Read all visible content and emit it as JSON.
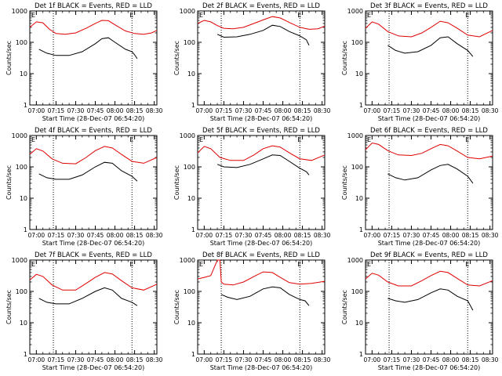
{
  "figure": {
    "x_tick_labels": [
      "07:00",
      "07:15",
      "07:30",
      "07:45",
      "08:00",
      "08:15",
      "08:30"
    ],
    "x_axis_title": "Start Time (28-Dec-07 06:54:20)",
    "y_axis_title": "Counts/sec",
    "y_tick_labels": [
      "1",
      "10",
      "100",
      "1000"
    ],
    "marker_label": "E",
    "colors": {
      "events": "#000000",
      "lld": "#e00000",
      "axes": "#000000"
    }
  },
  "chart_data": [
    {
      "type": "line",
      "title": "Det 1f BLACK = Events, RED = LLD",
      "xlabel": "Start Time (28-Dec-07 06:54:20)",
      "ylabel": "Counts/sec",
      "yscale": "log",
      "ylim": [
        1,
        1000
      ],
      "xlim": [
        "06:55",
        "08:32"
      ],
      "vlines": [
        "07:13",
        "08:13"
      ],
      "series": [
        {
          "name": "Events",
          "x": [
            "07:02",
            "07:08",
            "07:15",
            "07:25",
            "07:35",
            "07:45",
            "07:50",
            "07:55",
            "08:00",
            "08:08",
            "08:13",
            "08:15",
            "08:17"
          ],
          "values": [
            60,
            45,
            38,
            38,
            50,
            90,
            130,
            140,
            100,
            60,
            50,
            40,
            30
          ]
        },
        {
          "name": "LLD",
          "x": [
            "06:55",
            "07:00",
            "07:05",
            "07:10",
            "07:15",
            "07:22",
            "07:30",
            "07:38",
            "07:45",
            "07:50",
            "07:55",
            "08:00",
            "08:08",
            "08:15",
            "08:22",
            "08:28",
            "08:32"
          ],
          "values": [
            300,
            450,
            420,
            260,
            190,
            180,
            200,
            280,
            400,
            500,
            490,
            360,
            230,
            190,
            180,
            200,
            240
          ]
        }
      ]
    },
    {
      "type": "line",
      "title": "Det 2f BLACK = Events, RED = LLD",
      "xlabel": "Start Time (28-Dec-07 06:54:20)",
      "ylabel": "Counts/sec",
      "yscale": "log",
      "ylim": [
        1,
        1000
      ],
      "xlim": [
        "06:55",
        "08:32"
      ],
      "vlines": [
        "07:13",
        "08:13"
      ],
      "series": [
        {
          "name": "Events",
          "x": [
            "07:10",
            "07:15",
            "07:25",
            "07:35",
            "07:45",
            "07:52",
            "07:58",
            "08:05",
            "08:13",
            "08:18",
            "08:20"
          ],
          "values": [
            180,
            145,
            150,
            180,
            240,
            350,
            320,
            220,
            160,
            120,
            80
          ]
        },
        {
          "name": "LLD",
          "x": [
            "06:55",
            "07:00",
            "07:05",
            "07:10",
            "07:15",
            "07:22",
            "07:30",
            "07:38",
            "07:45",
            "07:52",
            "07:58",
            "08:05",
            "08:13",
            "08:20",
            "08:27",
            "08:32"
          ],
          "values": [
            400,
            500,
            450,
            340,
            280,
            270,
            300,
            400,
            520,
            660,
            600,
            430,
            300,
            260,
            270,
            330
          ]
        }
      ]
    },
    {
      "type": "line",
      "title": "Det 3f BLACK = Events, RED = LLD",
      "xlabel": "Start Time (28-Dec-07 06:54:20)",
      "ylabel": "Counts/sec",
      "yscale": "log",
      "ylim": [
        1,
        1000
      ],
      "xlim": [
        "06:55",
        "08:32"
      ],
      "vlines": [
        "07:13",
        "08:13"
      ],
      "series": [
        {
          "name": "Events",
          "x": [
            "07:12",
            "07:18",
            "07:25",
            "07:35",
            "07:45",
            "07:52",
            "07:58",
            "08:05",
            "08:13",
            "08:17"
          ],
          "values": [
            80,
            55,
            45,
            50,
            80,
            140,
            150,
            90,
            55,
            35
          ]
        },
        {
          "name": "LLD",
          "x": [
            "06:55",
            "07:00",
            "07:05",
            "07:12",
            "07:20",
            "07:30",
            "07:38",
            "07:45",
            "07:52",
            "07:58",
            "08:05",
            "08:13",
            "08:22",
            "08:32"
          ],
          "values": [
            280,
            450,
            380,
            220,
            160,
            150,
            200,
            300,
            470,
            420,
            280,
            170,
            150,
            240
          ]
        }
      ]
    },
    {
      "type": "line",
      "title": "Det 4f BLACK = Events, RED = LLD",
      "xlabel": "Start Time (28-Dec-07 06:54:20)",
      "ylabel": "Counts/sec",
      "yscale": "log",
      "ylim": [
        1,
        1000
      ],
      "xlim": [
        "06:55",
        "08:32"
      ],
      "vlines": [
        "07:13",
        "08:13"
      ],
      "series": [
        {
          "name": "Events",
          "x": [
            "07:02",
            "07:08",
            "07:15",
            "07:25",
            "07:35",
            "07:45",
            "07:52",
            "07:58",
            "08:05",
            "08:13",
            "08:17"
          ],
          "values": [
            60,
            45,
            40,
            40,
            55,
            100,
            140,
            130,
            75,
            50,
            35
          ]
        },
        {
          "name": "LLD",
          "x": [
            "06:55",
            "07:00",
            "07:05",
            "07:12",
            "07:20",
            "07:30",
            "07:38",
            "07:45",
            "07:52",
            "07:58",
            "08:05",
            "08:13",
            "08:22",
            "08:32"
          ],
          "values": [
            250,
            380,
            320,
            180,
            130,
            125,
            200,
            330,
            450,
            400,
            250,
            150,
            130,
            200
          ]
        }
      ]
    },
    {
      "type": "line",
      "title": "Det 5f BLACK = Events, RED = LLD",
      "xlabel": "Start Time (28-Dec-07 06:54:20)",
      "ylabel": "Counts/sec",
      "yscale": "log",
      "ylim": [
        1,
        1000
      ],
      "xlim": [
        "06:55",
        "08:32"
      ],
      "vlines": [
        "07:13",
        "08:13"
      ],
      "series": [
        {
          "name": "Events",
          "x": [
            "07:10",
            "07:15",
            "07:25",
            "07:35",
            "07:45",
            "07:52",
            "07:58",
            "08:05",
            "08:13",
            "08:18",
            "08:20"
          ],
          "values": [
            120,
            100,
            95,
            120,
            180,
            240,
            230,
            150,
            90,
            70,
            55
          ]
        },
        {
          "name": "LLD",
          "x": [
            "06:55",
            "07:00",
            "07:05",
            "07:12",
            "07:20",
            "07:30",
            "07:38",
            "07:45",
            "07:52",
            "07:58",
            "08:05",
            "08:13",
            "08:22",
            "08:32"
          ],
          "values": [
            280,
            450,
            380,
            200,
            160,
            160,
            240,
            380,
            470,
            430,
            280,
            180,
            160,
            240
          ]
        }
      ]
    },
    {
      "type": "line",
      "title": "Det 6f BLACK = Events, RED = LLD",
      "xlabel": "Start Time (28-Dec-07 06:54:20)",
      "ylabel": "Counts/sec",
      "yscale": "log",
      "ylim": [
        1,
        1000
      ],
      "xlim": [
        "06:55",
        "08:32"
      ],
      "vlines": [
        "07:13",
        "08:13"
      ],
      "series": [
        {
          "name": "Events",
          "x": [
            "07:12",
            "07:18",
            "07:25",
            "07:35",
            "07:45",
            "07:52",
            "07:58",
            "08:05",
            "08:13",
            "08:17"
          ],
          "values": [
            60,
            45,
            38,
            45,
            80,
            110,
            120,
            85,
            50,
            30
          ]
        },
        {
          "name": "LLD",
          "x": [
            "06:55",
            "07:00",
            "07:05",
            "07:12",
            "07:20",
            "07:30",
            "07:38",
            "07:45",
            "07:52",
            "07:58",
            "08:05",
            "08:13",
            "08:22",
            "08:32"
          ],
          "values": [
            350,
            580,
            520,
            330,
            240,
            230,
            270,
            380,
            520,
            470,
            320,
            200,
            180,
            220
          ]
        }
      ]
    },
    {
      "type": "line",
      "title": "Det 7f BLACK = Events, RED = LLD",
      "xlabel": "Start Time (28-Dec-07 06:54:20)",
      "ylabel": "Counts/sec",
      "yscale": "log",
      "ylim": [
        1,
        1000
      ],
      "xlim": [
        "06:55",
        "08:32"
      ],
      "vlines": [
        "07:13",
        "08:13"
      ],
      "series": [
        {
          "name": "Events",
          "x": [
            "07:02",
            "07:08",
            "07:15",
            "07:25",
            "07:35",
            "07:45",
            "07:52",
            "07:58",
            "08:05",
            "08:13",
            "08:17"
          ],
          "values": [
            60,
            45,
            40,
            40,
            60,
            100,
            130,
            110,
            60,
            45,
            35
          ]
        },
        {
          "name": "LLD",
          "x": [
            "06:55",
            "07:00",
            "07:05",
            "07:12",
            "07:20",
            "07:30",
            "07:38",
            "07:45",
            "07:52",
            "07:58",
            "08:05",
            "08:13",
            "08:22",
            "08:32"
          ],
          "values": [
            230,
            350,
            300,
            160,
            110,
            110,
            180,
            280,
            400,
            360,
            220,
            130,
            110,
            170
          ]
        }
      ]
    },
    {
      "type": "line",
      "title": "Det 8f BLACK = Events, RED = LLD",
      "xlabel": "Start Time (28-Dec-07 06:54:20)",
      "ylabel": "Counts/sec",
      "yscale": "log",
      "ylim": [
        1,
        1000
      ],
      "xlim": [
        "06:55",
        "08:32"
      ],
      "vlines": [
        "07:13",
        "08:13"
      ],
      "series": [
        {
          "name": "Events",
          "x": [
            "07:13",
            "07:18",
            "07:25",
            "07:35",
            "07:45",
            "07:52",
            "07:58",
            "08:05",
            "08:13",
            "08:17",
            "08:20"
          ],
          "values": [
            80,
            65,
            55,
            70,
            120,
            140,
            130,
            80,
            55,
            50,
            35
          ]
        },
        {
          "name": "LLD",
          "x": [
            "06:55",
            "07:00",
            "07:05",
            "07:10",
            "07:12",
            "07:13",
            "07:15",
            "07:22",
            "07:30",
            "07:38",
            "07:45",
            "07:52",
            "07:58",
            "08:05",
            "08:13",
            "08:22",
            "08:32"
          ],
          "values": [
            250,
            280,
            320,
            1000,
            1000,
            200,
            170,
            160,
            200,
            300,
            420,
            400,
            280,
            190,
            170,
            180,
            210
          ]
        }
      ]
    },
    {
      "type": "line",
      "title": "Det 9f BLACK = Events, RED = LLD",
      "xlabel": "Start Time (28-Dec-07 06:54:20)",
      "ylabel": "Counts/sec",
      "yscale": "log",
      "ylim": [
        1,
        1000
      ],
      "xlim": [
        "06:55",
        "08:32"
      ],
      "vlines": [
        "07:13",
        "08:13"
      ],
      "series": [
        {
          "name": "Events",
          "x": [
            "07:12",
            "07:18",
            "07:25",
            "07:35",
            "07:45",
            "07:52",
            "07:58",
            "08:05",
            "08:13",
            "08:17"
          ],
          "values": [
            60,
            50,
            45,
            55,
            90,
            120,
            110,
            70,
            50,
            25
          ]
        },
        {
          "name": "LLD",
          "x": [
            "06:55",
            "07:00",
            "07:05",
            "07:12",
            "07:20",
            "07:30",
            "07:38",
            "07:45",
            "07:52",
            "07:58",
            "08:05",
            "08:13",
            "08:22",
            "08:32"
          ],
          "values": [
            250,
            380,
            330,
            200,
            150,
            150,
            220,
            320,
            440,
            400,
            260,
            160,
            150,
            220
          ]
        }
      ]
    }
  ]
}
